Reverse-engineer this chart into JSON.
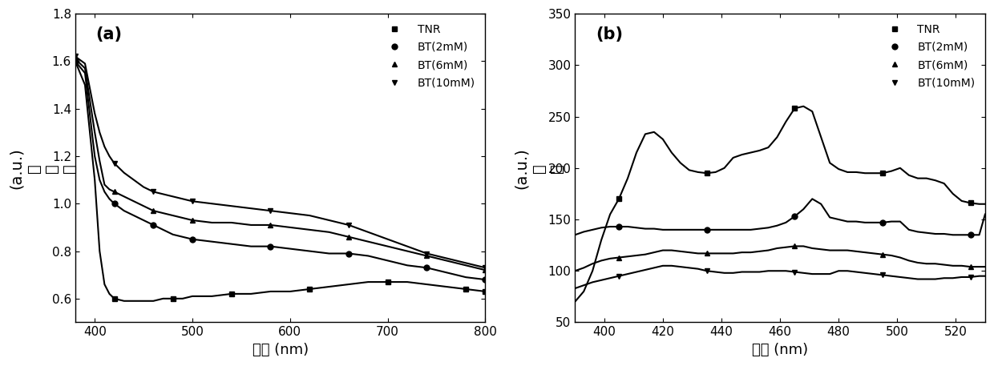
{
  "panel_a": {
    "xlabel": "波长 (nm)",
    "ylabel_chars": "吸光度",
    "ylabel_au": "(a.u.)",
    "title": "(a)",
    "xlim": [
      380,
      800
    ],
    "ylim": [
      0.5,
      1.8
    ],
    "yticks": [
      0.6,
      0.8,
      1.0,
      1.2,
      1.4,
      1.6,
      1.8
    ],
    "xticks": [
      400,
      500,
      600,
      700,
      800
    ],
    "series": {
      "TNR": {
        "x": [
          380,
          390,
          400,
          405,
          410,
          415,
          420,
          430,
          440,
          450,
          460,
          470,
          480,
          490,
          500,
          520,
          540,
          560,
          580,
          600,
          620,
          640,
          660,
          680,
          700,
          720,
          740,
          760,
          780,
          800
        ],
        "y": [
          1.6,
          1.5,
          1.1,
          0.8,
          0.66,
          0.62,
          0.6,
          0.59,
          0.59,
          0.59,
          0.59,
          0.6,
          0.6,
          0.6,
          0.61,
          0.61,
          0.62,
          0.62,
          0.63,
          0.63,
          0.64,
          0.65,
          0.66,
          0.67,
          0.67,
          0.67,
          0.66,
          0.65,
          0.64,
          0.63
        ],
        "marker": "s",
        "marker_indices": [
          0,
          6,
          12,
          16,
          20,
          24,
          28,
          29
        ]
      },
      "BT2mM": {
        "x": [
          380,
          390,
          400,
          405,
          410,
          415,
          420,
          430,
          440,
          450,
          460,
          470,
          480,
          490,
          500,
          520,
          540,
          560,
          580,
          600,
          620,
          640,
          660,
          680,
          700,
          720,
          740,
          760,
          780,
          800
        ],
        "y": [
          1.6,
          1.55,
          1.2,
          1.1,
          1.05,
          1.02,
          1.0,
          0.97,
          0.95,
          0.93,
          0.91,
          0.89,
          0.87,
          0.86,
          0.85,
          0.84,
          0.83,
          0.82,
          0.82,
          0.81,
          0.8,
          0.79,
          0.79,
          0.78,
          0.76,
          0.74,
          0.73,
          0.71,
          0.69,
          0.68
        ],
        "marker": "o",
        "marker_indices": [
          0,
          6,
          10,
          14,
          18,
          22,
          26,
          29
        ]
      },
      "BT6mM": {
        "x": [
          380,
          390,
          400,
          405,
          410,
          415,
          420,
          430,
          440,
          450,
          460,
          470,
          480,
          490,
          500,
          520,
          540,
          560,
          580,
          600,
          620,
          640,
          660,
          680,
          700,
          720,
          740,
          760,
          780,
          800
        ],
        "y": [
          1.61,
          1.57,
          1.3,
          1.18,
          1.08,
          1.06,
          1.05,
          1.03,
          1.01,
          0.99,
          0.97,
          0.96,
          0.95,
          0.94,
          0.93,
          0.92,
          0.92,
          0.91,
          0.91,
          0.9,
          0.89,
          0.88,
          0.86,
          0.84,
          0.82,
          0.8,
          0.78,
          0.76,
          0.74,
          0.72
        ],
        "marker": "^",
        "marker_indices": [
          0,
          6,
          10,
          14,
          18,
          22,
          26,
          29
        ]
      },
      "BT10mM": {
        "x": [
          380,
          390,
          400,
          405,
          410,
          415,
          420,
          430,
          440,
          450,
          460,
          470,
          480,
          490,
          500,
          520,
          540,
          560,
          580,
          600,
          620,
          640,
          660,
          680,
          700,
          720,
          740,
          760,
          780,
          800
        ],
        "y": [
          1.62,
          1.59,
          1.38,
          1.3,
          1.24,
          1.2,
          1.17,
          1.13,
          1.1,
          1.07,
          1.05,
          1.04,
          1.03,
          1.02,
          1.01,
          1.0,
          0.99,
          0.98,
          0.97,
          0.96,
          0.95,
          0.93,
          0.91,
          0.88,
          0.85,
          0.82,
          0.79,
          0.77,
          0.75,
          0.73
        ],
        "marker": "v",
        "marker_indices": [
          0,
          6,
          10,
          14,
          18,
          22,
          26,
          29
        ]
      }
    }
  },
  "panel_b": {
    "xlabel": "波长 (nm)",
    "ylabel_chars": "强度",
    "ylabel_au": "(a.u.)",
    "title": "(b)",
    "xlim": [
      390,
      530
    ],
    "ylim": [
      50,
      350
    ],
    "yticks": [
      50,
      100,
      150,
      200,
      250,
      300,
      350
    ],
    "xticks": [
      400,
      420,
      440,
      460,
      480,
      500,
      520
    ],
    "series": {
      "TNR": {
        "x": [
          390,
          393,
          396,
          399,
          402,
          405,
          408,
          411,
          414,
          417,
          420,
          423,
          426,
          429,
          432,
          435,
          438,
          441,
          444,
          447,
          450,
          453,
          456,
          459,
          462,
          465,
          468,
          471,
          474,
          477,
          480,
          483,
          486,
          489,
          492,
          495,
          498,
          501,
          504,
          507,
          510,
          513,
          516,
          519,
          522,
          525,
          528,
          530
        ],
        "y": [
          70,
          80,
          100,
          130,
          155,
          170,
          190,
          215,
          233,
          235,
          228,
          215,
          205,
          198,
          196,
          195,
          196,
          200,
          210,
          213,
          215,
          217,
          220,
          230,
          245,
          258,
          260,
          255,
          230,
          205,
          199,
          196,
          196,
          195,
          195,
          195,
          197,
          200,
          193,
          190,
          190,
          188,
          185,
          175,
          168,
          166,
          165,
          165
        ],
        "marker": "s",
        "marker_indices": [
          5,
          15,
          25,
          35,
          45
        ]
      },
      "BT2mM": {
        "x": [
          390,
          393,
          396,
          399,
          402,
          405,
          408,
          411,
          414,
          417,
          420,
          423,
          426,
          429,
          432,
          435,
          438,
          441,
          444,
          447,
          450,
          453,
          456,
          459,
          462,
          465,
          468,
          471,
          474,
          477,
          480,
          483,
          486,
          489,
          492,
          495,
          498,
          501,
          504,
          507,
          510,
          513,
          516,
          519,
          522,
          525,
          528,
          530
        ],
        "y": [
          135,
          138,
          140,
          142,
          143,
          143,
          143,
          142,
          141,
          141,
          140,
          140,
          140,
          140,
          140,
          140,
          140,
          140,
          140,
          140,
          140,
          141,
          142,
          144,
          147,
          153,
          160,
          170,
          165,
          152,
          150,
          148,
          148,
          147,
          147,
          147,
          148,
          148,
          140,
          138,
          137,
          136,
          136,
          135,
          135,
          135,
          135,
          155
        ],
        "marker": "o",
        "marker_indices": [
          5,
          15,
          25,
          35,
          45
        ]
      },
      "BT6mM": {
        "x": [
          390,
          393,
          396,
          399,
          402,
          405,
          408,
          411,
          414,
          417,
          420,
          423,
          426,
          429,
          432,
          435,
          438,
          441,
          444,
          447,
          450,
          453,
          456,
          459,
          462,
          465,
          468,
          471,
          474,
          477,
          480,
          483,
          486,
          489,
          492,
          495,
          498,
          501,
          504,
          507,
          510,
          513,
          516,
          519,
          522,
          525,
          528,
          530
        ],
        "y": [
          100,
          103,
          107,
          110,
          112,
          113,
          114,
          115,
          116,
          118,
          120,
          120,
          119,
          118,
          117,
          117,
          117,
          117,
          117,
          118,
          118,
          119,
          120,
          122,
          123,
          124,
          124,
          122,
          121,
          120,
          120,
          120,
          119,
          118,
          117,
          116,
          115,
          113,
          110,
          108,
          107,
          107,
          106,
          105,
          105,
          104,
          104,
          104
        ],
        "marker": "^",
        "marker_indices": [
          5,
          15,
          25,
          35,
          45
        ]
      },
      "BT10mM": {
        "x": [
          390,
          393,
          396,
          399,
          402,
          405,
          408,
          411,
          414,
          417,
          420,
          423,
          426,
          429,
          432,
          435,
          438,
          441,
          444,
          447,
          450,
          453,
          456,
          459,
          462,
          465,
          468,
          471,
          474,
          477,
          480,
          483,
          486,
          489,
          492,
          495,
          498,
          501,
          504,
          507,
          510,
          513,
          516,
          519,
          522,
          525,
          528,
          530
        ],
        "y": [
          83,
          86,
          89,
          91,
          93,
          95,
          97,
          99,
          101,
          103,
          105,
          105,
          104,
          103,
          102,
          100,
          99,
          98,
          98,
          99,
          99,
          99,
          100,
          100,
          100,
          99,
          98,
          97,
          97,
          97,
          100,
          100,
          99,
          98,
          97,
          96,
          95,
          94,
          93,
          92,
          92,
          92,
          93,
          93,
          94,
          94,
          95,
          95
        ],
        "marker": "v",
        "marker_indices": [
          5,
          15,
          25,
          35,
          45
        ]
      }
    }
  },
  "legend_labels": [
    "TNR",
    "BT(2mM)",
    "BT(6mM)",
    "BT(10mM)"
  ],
  "markers": [
    "s",
    "o",
    "^",
    "v"
  ],
  "color": "#000000",
  "linewidth": 1.5,
  "markersize": 5
}
